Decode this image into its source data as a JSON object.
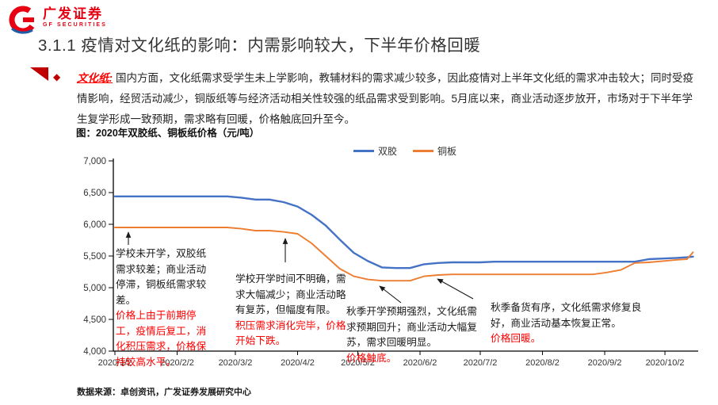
{
  "header": {
    "logo": {
      "cn": "广发证券",
      "en": "GF SECURITIES",
      "color": "#E60012"
    },
    "title": "3.1.1 疫情对文化纸的影响：内需影响较大，下半年价格回暖"
  },
  "bullet": {
    "label": "文化纸:",
    "text": "国内方面，文化纸需求受学生未上学影响，教辅材料的需求减少较多，因此疫情对上半年文化纸的需求冲击较大；同时受疫情影响，经贸活动减少，铜版纸等与经济活动相关性较强的纸品需求受到影响。5月底以来，商业活动逐步放开，市场对于下半年学生复学形成一致预期，需求略有回暖，价格触底回升至今。"
  },
  "chart": {
    "title": "图：2020年双胶纸、铜板纸价格（元/吨）"
  },
  "chart_data": {
    "type": "line",
    "title": "图：2020年双胶纸、铜板纸价格（元/吨）",
    "ylabel": "元/吨",
    "ylim": [
      4000,
      7000
    ],
    "yticks": [
      4000,
      4500,
      5000,
      5500,
      6000,
      6500,
      7000
    ],
    "xticks": [
      "2020/1/2",
      "2020/2/2",
      "2020/3/2",
      "2020/4/2",
      "2020/5/2",
      "2020/6/2",
      "2020/7/2",
      "2020/8/2",
      "2020/9/2",
      "2020/10/2"
    ],
    "x": [
      "2020/1/2",
      "2020/1/9",
      "2020/1/16",
      "2020/1/23",
      "2020/1/30",
      "2020/2/6",
      "2020/2/13",
      "2020/2/20",
      "2020/2/27",
      "2020/3/5",
      "2020/3/12",
      "2020/3/19",
      "2020/3/26",
      "2020/4/2",
      "2020/4/9",
      "2020/4/16",
      "2020/4/23",
      "2020/4/30",
      "2020/5/7",
      "2020/5/14",
      "2020/5/21",
      "2020/5/28",
      "2020/6/4",
      "2020/6/11",
      "2020/6/18",
      "2020/6/25",
      "2020/7/2",
      "2020/7/9",
      "2020/7/16",
      "2020/7/23",
      "2020/7/30",
      "2020/8/6",
      "2020/8/13",
      "2020/8/20",
      "2020/8/27",
      "2020/9/3",
      "2020/9/10",
      "2020/9/17",
      "2020/9/24",
      "2020/10/1",
      "2020/10/8",
      "2020/10/13",
      "2020/10/16"
    ],
    "series": [
      {
        "name": "双胶",
        "color": "#4472C4",
        "values": [
          6440,
          6440,
          6440,
          6440,
          6440,
          6440,
          6440,
          6440,
          6440,
          6420,
          6390,
          6390,
          6350,
          6280,
          6150,
          5980,
          5760,
          5550,
          5420,
          5320,
          5310,
          5310,
          5370,
          5390,
          5400,
          5400,
          5400,
          5410,
          5410,
          5410,
          5410,
          5410,
          5410,
          5410,
          5410,
          5410,
          5410,
          5410,
          5450,
          5460,
          5470,
          5480,
          5490
        ]
      },
      {
        "name": "铜板",
        "color": "#ED7D31",
        "values": [
          5950,
          5950,
          5950,
          5950,
          5950,
          5950,
          5950,
          5950,
          5950,
          5930,
          5900,
          5900,
          5880,
          5850,
          5700,
          5500,
          5300,
          5180,
          5130,
          5110,
          5110,
          5110,
          5180,
          5200,
          5210,
          5210,
          5210,
          5210,
          5210,
          5210,
          5210,
          5210,
          5210,
          5210,
          5210,
          5240,
          5280,
          5390,
          5400,
          5420,
          5440,
          5450,
          5560
        ]
      }
    ],
    "legend_position": "top",
    "grid": false
  },
  "annotations": [
    {
      "black": "学校未开学，双胶纸需求较差；商业活动停滞，铜板纸需求较差。",
      "red": "价格上由于前期停工，疫情后复工，消化积压需求，价格保持较高水平。"
    },
    {
      "black": "学校开学时间不明确，需求大幅减少；商业活动略有复苏，但幅度有限。",
      "red": "积压需求消化完毕，价格开始下跌。"
    },
    {
      "black": "秋季开学预期强烈，文化纸需求预期回升；商业活动大幅复苏，需求回暖明显。",
      "red": "价格触底。"
    },
    {
      "black": "秋季备货有序，文化纸需求修复良好，商业活动基本恢复正常。",
      "red": "价格回暖。"
    }
  ],
  "footer": {
    "source": "数据来源：卓创资讯，广发证券发展研究中心"
  }
}
